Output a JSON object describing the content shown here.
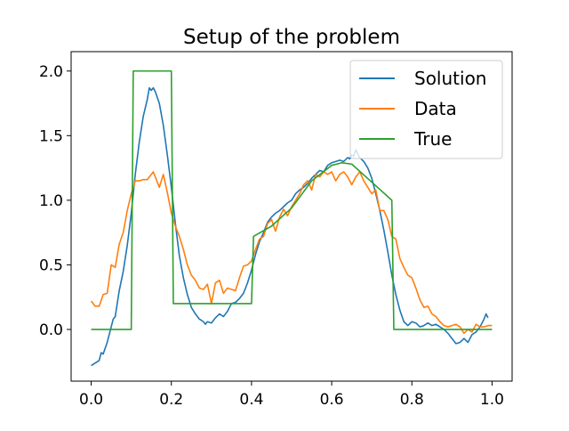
{
  "chart_data": {
    "type": "line",
    "title": "Setup of the problem",
    "xlabel": "",
    "ylabel": "",
    "xlim": [
      -0.05,
      1.05
    ],
    "ylim": [
      -0.4,
      2.15
    ],
    "x_ticks": [
      0.0,
      0.2,
      0.4,
      0.6,
      0.8,
      1.0
    ],
    "x_tick_labels": [
      "0.0",
      "0.2",
      "0.4",
      "0.6",
      "0.8",
      "1.0"
    ],
    "y_ticks": [
      0.0,
      0.5,
      1.0,
      1.5,
      2.0
    ],
    "y_tick_labels": [
      "0.0",
      "0.5",
      "1.0",
      "1.5",
      "2.0"
    ],
    "grid": false,
    "legend_position": "top-right",
    "series": [
      {
        "name": "Solution",
        "color": "#1f77b4",
        "points": [
          [
            0.0,
            -0.28
          ],
          [
            0.01,
            -0.26
          ],
          [
            0.02,
            -0.24
          ],
          [
            0.025,
            -0.18
          ],
          [
            0.03,
            -0.19
          ],
          [
            0.04,
            -0.1
          ],
          [
            0.05,
            0.02
          ],
          [
            0.055,
            0.08
          ],
          [
            0.06,
            0.1
          ],
          [
            0.065,
            0.2
          ],
          [
            0.07,
            0.3
          ],
          [
            0.08,
            0.45
          ],
          [
            0.09,
            0.65
          ],
          [
            0.1,
            0.9
          ],
          [
            0.11,
            1.2
          ],
          [
            0.12,
            1.45
          ],
          [
            0.13,
            1.65
          ],
          [
            0.14,
            1.78
          ],
          [
            0.145,
            1.87
          ],
          [
            0.15,
            1.85
          ],
          [
            0.155,
            1.87
          ],
          [
            0.16,
            1.84
          ],
          [
            0.17,
            1.75
          ],
          [
            0.18,
            1.58
          ],
          [
            0.19,
            1.35
          ],
          [
            0.2,
            1.1
          ],
          [
            0.21,
            0.82
          ],
          [
            0.22,
            0.57
          ],
          [
            0.23,
            0.4
          ],
          [
            0.24,
            0.27
          ],
          [
            0.25,
            0.17
          ],
          [
            0.26,
            0.12
          ],
          [
            0.27,
            0.08
          ],
          [
            0.28,
            0.06
          ],
          [
            0.285,
            0.04
          ],
          [
            0.29,
            0.06
          ],
          [
            0.3,
            0.05
          ],
          [
            0.31,
            0.09
          ],
          [
            0.32,
            0.12
          ],
          [
            0.33,
            0.1
          ],
          [
            0.34,
            0.14
          ],
          [
            0.35,
            0.2
          ],
          [
            0.36,
            0.21
          ],
          [
            0.37,
            0.24
          ],
          [
            0.38,
            0.28
          ],
          [
            0.39,
            0.36
          ],
          [
            0.4,
            0.46
          ],
          [
            0.41,
            0.58
          ],
          [
            0.42,
            0.68
          ],
          [
            0.43,
            0.75
          ],
          [
            0.44,
            0.83
          ],
          [
            0.45,
            0.87
          ],
          [
            0.46,
            0.9
          ],
          [
            0.47,
            0.92
          ],
          [
            0.48,
            0.95
          ],
          [
            0.49,
            0.98
          ],
          [
            0.5,
            1.0
          ],
          [
            0.51,
            1.05
          ],
          [
            0.52,
            1.08
          ],
          [
            0.53,
            1.1
          ],
          [
            0.54,
            1.13
          ],
          [
            0.55,
            1.17
          ],
          [
            0.56,
            1.2
          ],
          [
            0.57,
            1.23
          ],
          [
            0.58,
            1.22
          ],
          [
            0.59,
            1.27
          ],
          [
            0.6,
            1.29
          ],
          [
            0.61,
            1.3
          ],
          [
            0.62,
            1.31
          ],
          [
            0.63,
            1.3
          ],
          [
            0.64,
            1.33
          ],
          [
            0.645,
            1.32
          ],
          [
            0.65,
            1.35
          ],
          [
            0.655,
            1.34
          ],
          [
            0.66,
            1.39
          ],
          [
            0.67,
            1.33
          ],
          [
            0.68,
            1.3
          ],
          [
            0.69,
            1.25
          ],
          [
            0.7,
            1.17
          ],
          [
            0.71,
            1.05
          ],
          [
            0.72,
            0.92
          ],
          [
            0.73,
            0.77
          ],
          [
            0.74,
            0.6
          ],
          [
            0.75,
            0.42
          ],
          [
            0.76,
            0.27
          ],
          [
            0.77,
            0.15
          ],
          [
            0.78,
            0.06
          ],
          [
            0.79,
            0.03
          ],
          [
            0.8,
            0.06
          ],
          [
            0.81,
            0.05
          ],
          [
            0.82,
            0.02
          ],
          [
            0.83,
            0.03
          ],
          [
            0.84,
            0.05
          ],
          [
            0.85,
            0.03
          ],
          [
            0.86,
            0.04
          ],
          [
            0.87,
            0.02
          ],
          [
            0.88,
            0.0
          ],
          [
            0.89,
            -0.03
          ],
          [
            0.9,
            -0.07
          ],
          [
            0.91,
            -0.11
          ],
          [
            0.92,
            -0.1
          ],
          [
            0.93,
            -0.07
          ],
          [
            0.94,
            -0.1
          ],
          [
            0.95,
            -0.04
          ],
          [
            0.96,
            -0.02
          ],
          [
            0.97,
            0.02
          ],
          [
            0.98,
            0.08
          ],
          [
            0.985,
            0.12
          ],
          [
            0.99,
            0.09
          ]
        ]
      },
      {
        "name": "Data",
        "color": "#ff7f0e",
        "points": [
          [
            0.0,
            0.22
          ],
          [
            0.01,
            0.18
          ],
          [
            0.02,
            0.18
          ],
          [
            0.03,
            0.27
          ],
          [
            0.04,
            0.28
          ],
          [
            0.05,
            0.5
          ],
          [
            0.06,
            0.48
          ],
          [
            0.07,
            0.66
          ],
          [
            0.08,
            0.75
          ],
          [
            0.09,
            0.92
          ],
          [
            0.1,
            1.05
          ],
          [
            0.11,
            1.15
          ],
          [
            0.12,
            1.15
          ],
          [
            0.13,
            1.16
          ],
          [
            0.14,
            1.16
          ],
          [
            0.15,
            1.2
          ],
          [
            0.155,
            1.22
          ],
          [
            0.16,
            1.18
          ],
          [
            0.17,
            1.1
          ],
          [
            0.18,
            1.2
          ],
          [
            0.19,
            1.06
          ],
          [
            0.2,
            0.9
          ],
          [
            0.21,
            0.8
          ],
          [
            0.22,
            0.72
          ],
          [
            0.23,
            0.62
          ],
          [
            0.24,
            0.5
          ],
          [
            0.25,
            0.42
          ],
          [
            0.26,
            0.38
          ],
          [
            0.27,
            0.32
          ],
          [
            0.28,
            0.31
          ],
          [
            0.29,
            0.35
          ],
          [
            0.3,
            0.2
          ],
          [
            0.31,
            0.36
          ],
          [
            0.32,
            0.38
          ],
          [
            0.33,
            0.28
          ],
          [
            0.34,
            0.32
          ],
          [
            0.35,
            0.31
          ],
          [
            0.36,
            0.3
          ],
          [
            0.37,
            0.4
          ],
          [
            0.38,
            0.49
          ],
          [
            0.39,
            0.5
          ],
          [
            0.4,
            0.53
          ],
          [
            0.41,
            0.62
          ],
          [
            0.42,
            0.7
          ],
          [
            0.43,
            0.72
          ],
          [
            0.44,
            0.82
          ],
          [
            0.45,
            0.85
          ],
          [
            0.46,
            0.76
          ],
          [
            0.47,
            0.87
          ],
          [
            0.48,
            0.93
          ],
          [
            0.49,
            0.88
          ],
          [
            0.5,
            0.95
          ],
          [
            0.51,
            1.0
          ],
          [
            0.52,
            1.05
          ],
          [
            0.53,
            1.12
          ],
          [
            0.54,
            1.15
          ],
          [
            0.55,
            1.08
          ],
          [
            0.56,
            1.2
          ],
          [
            0.57,
            1.18
          ],
          [
            0.58,
            1.22
          ],
          [
            0.59,
            1.2
          ],
          [
            0.6,
            1.22
          ],
          [
            0.61,
            1.15
          ],
          [
            0.62,
            1.2
          ],
          [
            0.63,
            1.22
          ],
          [
            0.64,
            1.18
          ],
          [
            0.65,
            1.12
          ],
          [
            0.66,
            1.18
          ],
          [
            0.67,
            1.22
          ],
          [
            0.68,
            1.15
          ],
          [
            0.69,
            1.1
          ],
          [
            0.7,
            1.05
          ],
          [
            0.71,
            1.08
          ],
          [
            0.72,
            0.92
          ],
          [
            0.73,
            0.92
          ],
          [
            0.74,
            0.85
          ],
          [
            0.75,
            0.72
          ],
          [
            0.76,
            0.7
          ],
          [
            0.77,
            0.55
          ],
          [
            0.78,
            0.48
          ],
          [
            0.79,
            0.42
          ],
          [
            0.8,
            0.4
          ],
          [
            0.81,
            0.32
          ],
          [
            0.82,
            0.23
          ],
          [
            0.83,
            0.17
          ],
          [
            0.84,
            0.18
          ],
          [
            0.85,
            0.12
          ],
          [
            0.86,
            0.1
          ],
          [
            0.87,
            0.06
          ],
          [
            0.88,
            0.03
          ],
          [
            0.89,
            0.02
          ],
          [
            0.9,
            0.03
          ],
          [
            0.91,
            0.04
          ],
          [
            0.92,
            0.02
          ],
          [
            0.93,
            -0.03
          ],
          [
            0.94,
            0.0
          ],
          [
            0.95,
            -0.02
          ],
          [
            0.96,
            0.04
          ],
          [
            0.97,
            0.02
          ],
          [
            0.98,
            0.02
          ],
          [
            0.99,
            0.03
          ],
          [
            1.0,
            0.03
          ]
        ]
      },
      {
        "name": "True",
        "color": "#2ca02c",
        "points": [
          [
            0.0,
            0.0
          ],
          [
            0.1,
            0.0
          ],
          [
            0.105,
            2.0
          ],
          [
            0.2,
            2.0
          ],
          [
            0.205,
            0.2
          ],
          [
            0.4,
            0.2
          ],
          [
            0.405,
            0.72
          ],
          [
            0.45,
            0.8
          ],
          [
            0.5,
            0.94
          ],
          [
            0.55,
            1.15
          ],
          [
            0.6,
            1.27
          ],
          [
            0.625,
            1.29
          ],
          [
            0.65,
            1.28
          ],
          [
            0.7,
            1.14
          ],
          [
            0.75,
            1.0
          ],
          [
            0.755,
            0.0
          ],
          [
            1.0,
            0.0
          ]
        ]
      }
    ]
  }
}
